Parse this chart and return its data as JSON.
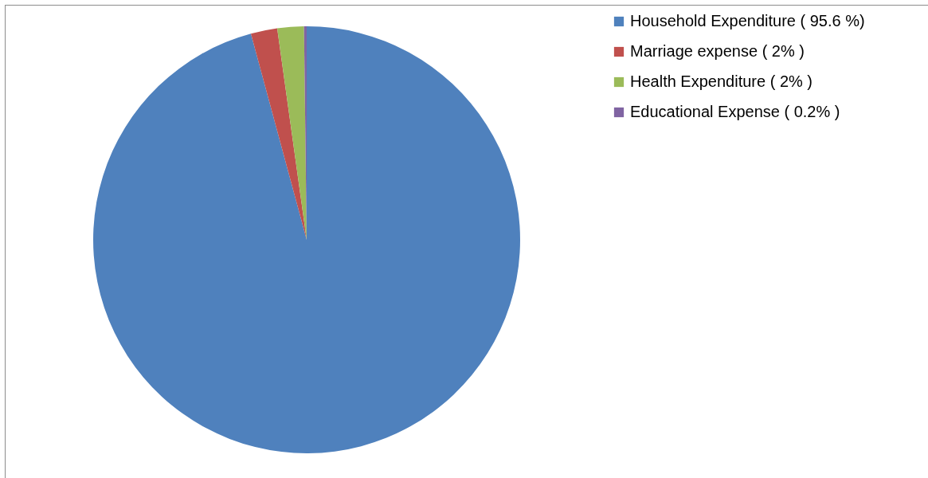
{
  "chart_data": {
    "type": "pie",
    "categories": [
      "Household Expenditure ( 95.6 %)",
      "Marriage expense ( 2% )",
      "Health Expenditure ( 2% )",
      "Educational Expense ( 0.2% )"
    ],
    "values": [
      95.6,
      2,
      2,
      0.2
    ],
    "colors": [
      "#4f81bd",
      "#c0504d",
      "#9bbb59",
      "#8064a2"
    ],
    "legend": "right"
  }
}
